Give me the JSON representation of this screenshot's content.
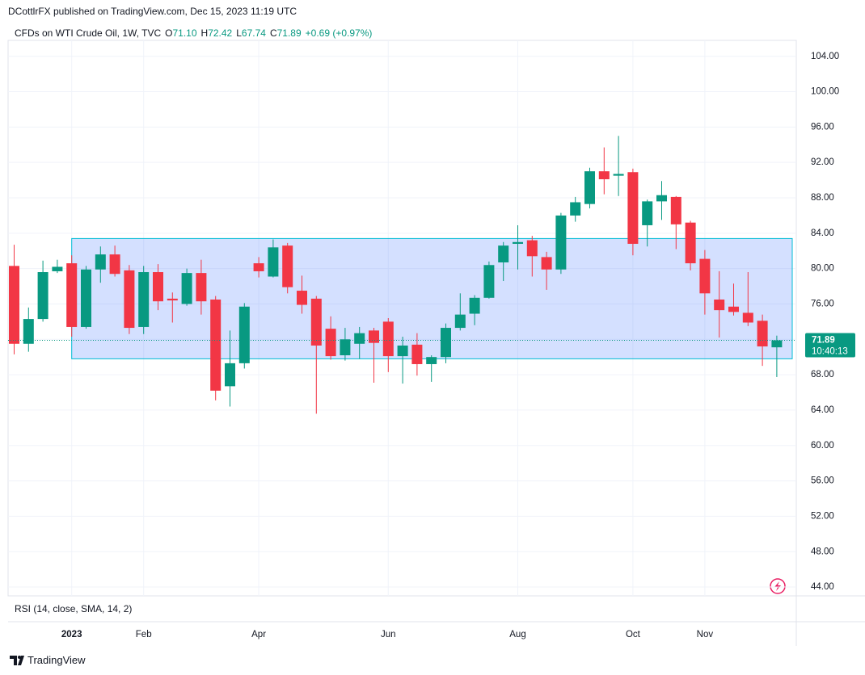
{
  "chart_data": {
    "type": "candlestick",
    "title": "DCottlrFX published on TradingView.com, Dec 15, 2023 11:19 UTC",
    "symbol": "CFDs on WTI Crude Oil, 1W, TVC",
    "ohlc_legend": [
      {
        "key": "O",
        "text": "71.10"
      },
      {
        "key": "H",
        "text": "72.42"
      },
      {
        "key": "L",
        "text": "67.74"
      },
      {
        "key": "C",
        "text": "71.89"
      }
    ],
    "change": "+0.69 (+0.97%)",
    "indicator": "RSI (14, close, SMA, 14, 2)",
    "brand": "TradingView",
    "up_color": "#089981",
    "down_color": "#f23645",
    "categories": [
      null,
      null,
      null,
      null,
      "2023",
      null,
      null,
      null,
      null,
      "Feb",
      null,
      null,
      null,
      null,
      null,
      null,
      null,
      "Apr",
      null,
      null,
      null,
      null,
      null,
      null,
      null,
      null,
      "Jun",
      null,
      null,
      null,
      null,
      null,
      null,
      null,
      null,
      "Aug",
      null,
      null,
      null,
      null,
      null,
      null,
      null,
      "Oct",
      null,
      null,
      null,
      null,
      "Nov",
      null,
      null,
      null,
      null,
      null
    ],
    "open": [
      80.3,
      71.5,
      74.3,
      79.7,
      80.6,
      73.4,
      79.9,
      81.6,
      79.8,
      73.4,
      79.6,
      76.6,
      76.0,
      79.5,
      76.5,
      66.7,
      69.3,
      80.6,
      79.1,
      82.6,
      77.5,
      76.6,
      73.2,
      70.2,
      71.5,
      73.0,
      74.0,
      70.1,
      71.4,
      69.2,
      70.0,
      73.3,
      74.9,
      76.7,
      80.7,
      82.8,
      83.2,
      81.3,
      79.9,
      86.0,
      87.3,
      91.0,
      90.5,
      90.9,
      84.9,
      87.6,
      88.1,
      85.2,
      81.1,
      76.5,
      75.7,
      75.0,
      74.1,
      71.1
    ],
    "high": [
      82.7,
      75.6,
      80.9,
      81.0,
      81.5,
      80.3,
      82.5,
      82.6,
      80.4,
      80.3,
      80.5,
      77.3,
      80.0,
      81.0,
      76.9,
      73.0,
      76.1,
      81.3,
      83.3,
      82.9,
      79.2,
      76.9,
      74.6,
      73.3,
      73.4,
      73.3,
      74.4,
      72.3,
      72.7,
      70.2,
      73.8,
      77.2,
      77.0,
      80.8,
      83.0,
      84.9,
      83.7,
      81.9,
      86.3,
      88.1,
      91.4,
      93.7,
      95.0,
      91.3,
      87.8,
      89.9,
      88.2,
      85.4,
      82.1,
      79.7,
      78.3,
      79.6,
      74.8,
      72.42
    ],
    "low": [
      70.3,
      70.6,
      74.0,
      79.5,
      72.3,
      73.2,
      78.4,
      79.1,
      72.6,
      72.6,
      75.3,
      73.9,
      75.8,
      74.8,
      65.1,
      64.4,
      68.7,
      79.0,
      79.0,
      77.2,
      74.9,
      63.6,
      69.7,
      69.6,
      69.8,
      67.1,
      68.3,
      67.0,
      67.9,
      67.2,
      69.3,
      73.0,
      73.6,
      76.6,
      78.6,
      79.9,
      79.1,
      77.6,
      79.4,
      85.3,
      86.8,
      88.4,
      88.2,
      81.5,
      82.5,
      85.5,
      82.2,
      79.8,
      74.8,
      72.2,
      74.7,
      73.5,
      69.0,
      67.74
    ],
    "close": [
      71.5,
      74.3,
      79.6,
      80.2,
      73.4,
      79.9,
      81.6,
      79.4,
      73.3,
      79.6,
      76.3,
      76.4,
      79.5,
      76.3,
      66.2,
      69.3,
      75.7,
      79.7,
      82.4,
      77.9,
      75.9,
      71.3,
      70.1,
      72.0,
      72.7,
      71.6,
      70.1,
      71.3,
      69.2,
      70.0,
      73.3,
      74.8,
      76.7,
      80.4,
      82.6,
      83.0,
      81.4,
      79.9,
      86.0,
      87.5,
      91.0,
      90.1,
      90.7,
      82.8,
      87.6,
      88.3,
      85.0,
      80.6,
      77.2,
      75.3,
      75.1,
      73.9,
      71.2,
      71.89
    ],
    "ylim": [
      43.0,
      105.8
    ],
    "yticks": [
      {
        "value": 44,
        "label": "44.00"
      },
      {
        "value": 48,
        "label": "48.00"
      },
      {
        "value": 52,
        "label": "52.00"
      },
      {
        "value": 56,
        "label": "56.00"
      },
      {
        "value": 60,
        "label": "60.00"
      },
      {
        "value": 64,
        "label": "64.00"
      },
      {
        "value": 68,
        "label": "68.00"
      },
      {
        "value": 72,
        "label": "72.00"
      },
      {
        "value": 76,
        "label": "76.00"
      },
      {
        "value": 80,
        "label": "80.00"
      },
      {
        "value": 84,
        "label": "84.00"
      },
      {
        "value": 88,
        "label": "88.00"
      },
      {
        "value": 92,
        "label": "92.00"
      },
      {
        "value": 96,
        "label": "96.00"
      },
      {
        "value": 100,
        "label": "100.00"
      },
      {
        "value": 104,
        "label": "104.00"
      }
    ],
    "grid": true,
    "range_box": {
      "low": 69.8,
      "high": 83.4,
      "color": "#2962ff"
    },
    "last_price": {
      "value": 71.89,
      "label": "71.89"
    },
    "countdown": "10:40:13"
  }
}
